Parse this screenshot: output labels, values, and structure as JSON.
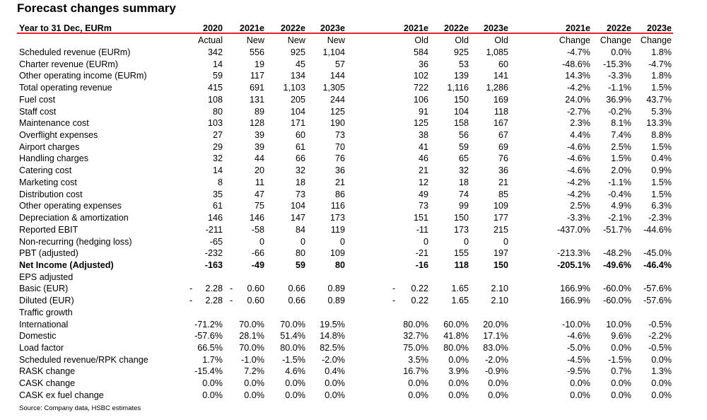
{
  "title": "Forecast changes summary",
  "source": "Source: Company data, HSBC estimates",
  "header": {
    "label": "Year to 31 Dec, EURm",
    "years": [
      "2020",
      "2021e",
      "2022e",
      "2023e",
      "2021e",
      "2022e",
      "2023e",
      "2021e",
      "2022e",
      "2023e"
    ],
    "sub": [
      "Actual",
      "New",
      "New",
      "New",
      "Old",
      "Old",
      "Old",
      "Change",
      "Change",
      "Change"
    ]
  },
  "rows": [
    {
      "label": "Scheduled revenue (EURm)",
      "v": [
        "342",
        "556",
        "925",
        "1,104",
        "584",
        "925",
        "1,085",
        "-4.7%",
        "0.0%",
        "1.8%"
      ]
    },
    {
      "label": "Charter revenue (EURm)",
      "v": [
        "14",
        "19",
        "45",
        "57",
        "36",
        "53",
        "60",
        "-48.6%",
        "-15.3%",
        "-4.7%"
      ]
    },
    {
      "label": "Other operating income (EURm)",
      "v": [
        "59",
        "117",
        "134",
        "144",
        "102",
        "139",
        "141",
        "14.3%",
        "-3.3%",
        "1.8%"
      ]
    },
    {
      "label": "Total operating revenue",
      "v": [
        "415",
        "691",
        "1,103",
        "1,305",
        "722",
        "1,116",
        "1,286",
        "-4.2%",
        "-1.1%",
        "1.5%"
      ]
    },
    {
      "label": "Fuel cost",
      "v": [
        "108",
        "131",
        "205",
        "244",
        "106",
        "150",
        "169",
        "24.0%",
        "36.9%",
        "43.7%"
      ]
    },
    {
      "label": "Staff cost",
      "v": [
        "80",
        "89",
        "104",
        "125",
        "91",
        "104",
        "118",
        "-2.7%",
        "-0.2%",
        "5.3%"
      ]
    },
    {
      "label": "Maintenance cost",
      "v": [
        "103",
        "128",
        "171",
        "190",
        "125",
        "158",
        "167",
        "2.3%",
        "8.1%",
        "13.3%"
      ]
    },
    {
      "label": "Overflight expenses",
      "v": [
        "27",
        "39",
        "60",
        "73",
        "38",
        "56",
        "67",
        "4.4%",
        "7.4%",
        "8.8%"
      ]
    },
    {
      "label": "Airport charges",
      "v": [
        "29",
        "39",
        "61",
        "70",
        "41",
        "59",
        "69",
        "-4.6%",
        "2.5%",
        "1.5%"
      ]
    },
    {
      "label": "Handling charges",
      "v": [
        "32",
        "44",
        "66",
        "76",
        "46",
        "65",
        "76",
        "-4.6%",
        "1.5%",
        "0.4%"
      ]
    },
    {
      "label": "Catering cost",
      "v": [
        "14",
        "20",
        "32",
        "36",
        "21",
        "32",
        "36",
        "-4.6%",
        "2.0%",
        "0.9%"
      ]
    },
    {
      "label": "Marketing cost",
      "v": [
        "8",
        "11",
        "18",
        "21",
        "12",
        "18",
        "21",
        "-4.2%",
        "-1.1%",
        "1.5%"
      ]
    },
    {
      "label": "Distribution cost",
      "v": [
        "35",
        "47",
        "73",
        "86",
        "49",
        "74",
        "85",
        "-4.2%",
        "-0.4%",
        "1.5%"
      ]
    },
    {
      "label": "Other operating expenses",
      "v": [
        "61",
        "75",
        "104",
        "116",
        "73",
        "99",
        "109",
        "2.5%",
        "4.9%",
        "6.3%"
      ]
    },
    {
      "label": "Depreciation & amortization",
      "v": [
        "146",
        "146",
        "147",
        "173",
        "151",
        "150",
        "177",
        "-3.3%",
        "-2.1%",
        "-2.3%"
      ]
    },
    {
      "label": "Reported EBIT",
      "v": [
        "-211",
        "-58",
        "84",
        "119",
        "-11",
        "173",
        "215",
        "-437.0%",
        "-51.7%",
        "-44.6%"
      ]
    },
    {
      "label": "Non-recurring (hedging loss)",
      "v": [
        "-65",
        "0",
        "0",
        "0",
        "0",
        "0",
        "0",
        "",
        "",
        ""
      ]
    },
    {
      "label": "PBT (adjusted)",
      "v": [
        "-232",
        "-66",
        "80",
        "109",
        "-21",
        "155",
        "197",
        "-213.3%",
        "-48.2%",
        "-45.0%"
      ]
    },
    {
      "label": "Net Income (Adjusted)",
      "bold": true,
      "v": [
        "-163",
        "-49",
        "59",
        "80",
        "-16",
        "118",
        "150",
        "-205.1%",
        "-49.6%",
        "-46.4%"
      ]
    },
    {
      "label": "EPS adjusted",
      "v": [
        "",
        "",
        "",
        "",
        "",
        "",
        "",
        "",
        "",
        ""
      ]
    },
    {
      "label": "Basic (EUR)",
      "v": [
        "2.28",
        "0.60",
        "0.66",
        "0.89",
        "0.22",
        "1.65",
        "2.10",
        "166.9%",
        "-60.0%",
        "-57.6%"
      ],
      "dash": [
        "-",
        "-",
        "",
        "",
        "-",
        "",
        "",
        "",
        "",
        ""
      ]
    },
    {
      "label": "Diluted (EUR)",
      "v": [
        "2.28",
        "0.60",
        "0.66",
        "0.89",
        "0.22",
        "1.65",
        "2.10",
        "166.9%",
        "-60.0%",
        "-57.6%"
      ],
      "dash": [
        "-",
        "-",
        "",
        "",
        "-",
        "",
        "",
        "",
        "",
        ""
      ]
    },
    {
      "label": "Traffic growth",
      "v": [
        "",
        "",
        "",
        "",
        "",
        "",
        "",
        "",
        "",
        ""
      ]
    },
    {
      "label": "International",
      "v": [
        "-71.2%",
        "70.0%",
        "70.0%",
        "19.5%",
        "80.0%",
        "60.0%",
        "20.0%",
        "-10.0%",
        "10.0%",
        "-0.5%"
      ]
    },
    {
      "label": "Domestic",
      "v": [
        "-57.6%",
        "28.1%",
        "51.4%",
        "14.8%",
        "32.7%",
        "41.8%",
        "17.1%",
        "-4.6%",
        "9.6%",
        "-2.2%"
      ]
    },
    {
      "label": "Load factor",
      "v": [
        "66.5%",
        "70.0%",
        "80.0%",
        "82.5%",
        "75.0%",
        "80.0%",
        "83.0%",
        "-5.0%",
        "0.0%",
        "-0.5%"
      ]
    },
    {
      "label": "Scheduled revenue/RPK change",
      "v": [
        "1.7%",
        "-1.0%",
        "-1.5%",
        "-2.0%",
        "3.5%",
        "0.0%",
        "-2.0%",
        "-4.5%",
        "-1.5%",
        "0.0%"
      ]
    },
    {
      "label": "RASK change",
      "v": [
        "-15.4%",
        "7.2%",
        "4.6%",
        "0.4%",
        "16.7%",
        "3.9%",
        "-0.9%",
        "-9.5%",
        "0.7%",
        "1.3%"
      ]
    },
    {
      "label": "CASK change",
      "v": [
        "0.0%",
        "0.0%",
        "0.0%",
        "0.0%",
        "0.0%",
        "0.0%",
        "0.0%",
        "0.0%",
        "0.0%",
        "0.0%"
      ]
    },
    {
      "label": "CASK ex fuel change",
      "v": [
        "0.0%",
        "0.0%",
        "0.0%",
        "0.0%",
        "0.0%",
        "0.0%",
        "0.0%",
        "0.0%",
        "0.0%",
        "0.0%"
      ]
    }
  ]
}
